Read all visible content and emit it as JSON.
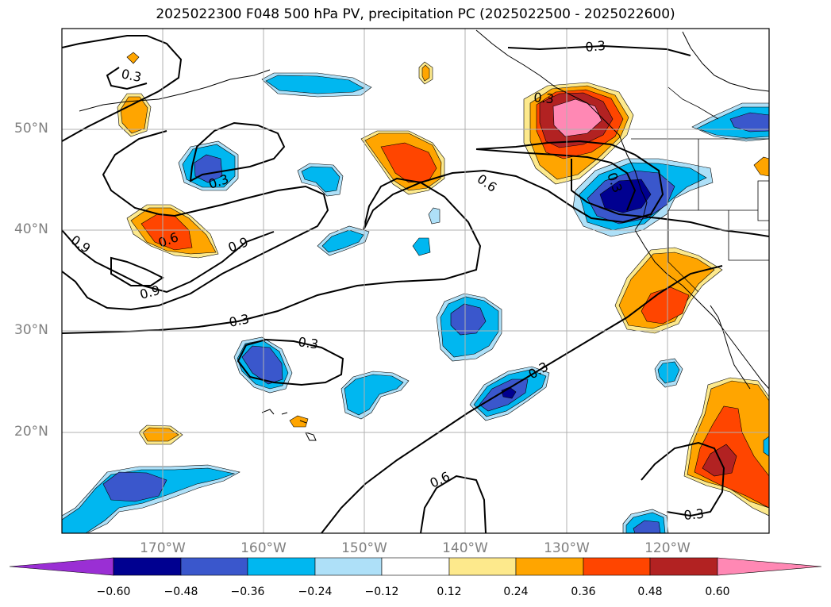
{
  "title": "2025022300 F048 500 hPa PV, precipitation PC (2025022500 - 2025022600)",
  "lat_labels": [
    "50°N",
    "40°N",
    "30°N",
    "20°N"
  ],
  "lon_labels": [
    "170°W",
    "160°W",
    "150°W",
    "140°W",
    "130°W",
    "120°W"
  ],
  "colorbar": {
    "ticks": [
      "−0.60",
      "−0.48",
      "−0.36",
      "−0.24",
      "−0.12",
      "0.12",
      "0.24",
      "0.36",
      "0.48",
      "0.60"
    ],
    "colors": [
      "#9a2fd4",
      "#000090",
      "#3a57cc",
      "#00b7f0",
      "#aee0f8",
      "#ffffff",
      "#fde98c",
      "#ffa500",
      "#ff4500",
      "#b22222",
      "#ff88b4"
    ]
  },
  "contour_labels": [
    "0.3",
    "0.3",
    "0.3",
    "0.9",
    "0.6",
    "0.9",
    "0.9",
    "0.3",
    "0.3",
    "0.6",
    "0.3",
    "0.6",
    "0.3",
    "0.3",
    "0.3"
  ]
}
